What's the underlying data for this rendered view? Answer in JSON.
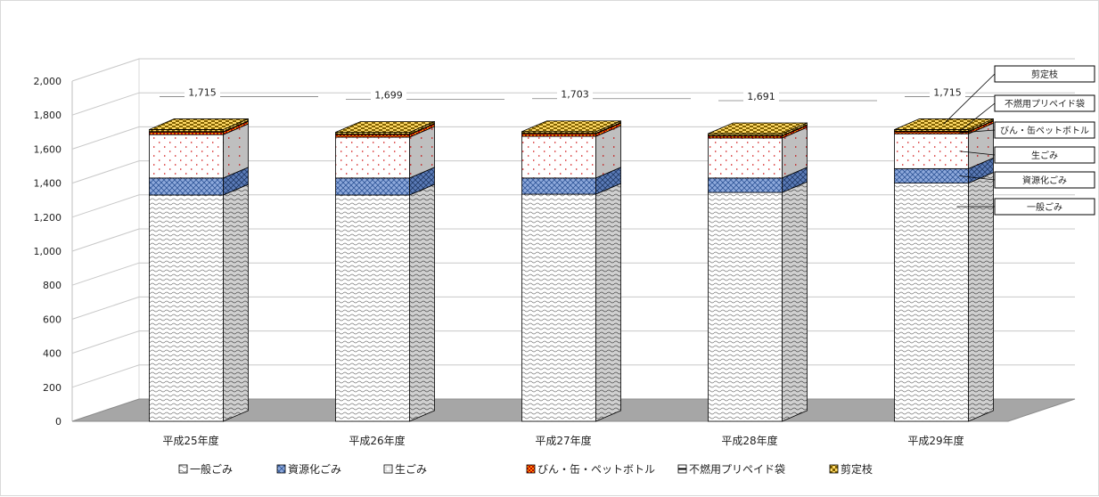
{
  "chart_data": {
    "type": "bar",
    "stacked": true,
    "three_d": true,
    "categories": [
      "平成25年度",
      "平成26年度",
      "平成27年度",
      "平成28年度",
      "平成29年度"
    ],
    "series": [
      {
        "name": "一般ごみ",
        "values": [
          1330,
          1330,
          1335,
          1345,
          1400
        ],
        "color": "#ffffff",
        "pattern": "wave"
      },
      {
        "name": "資源化ごみ",
        "values": [
          100,
          100,
          95,
          85,
          85
        ],
        "color": "#8ea9db",
        "pattern": "weave"
      },
      {
        "name": "生ごみ",
        "values": [
          255,
          240,
          245,
          235,
          205
        ],
        "color": "#ffffff",
        "pattern": "dots"
      },
      {
        "name": "びん・缶・ペットボトル",
        "values": [
          15,
          15,
          15,
          12,
          12
        ],
        "color": "#c00000",
        "pattern": "check"
      },
      {
        "name": "不燃用プリペイド袋",
        "values": [
          3,
          3,
          3,
          3,
          3
        ],
        "color": "#7f7f7f",
        "pattern": "solid"
      },
      {
        "name": "剪定枝",
        "values": [
          12,
          11,
          10,
          11,
          10
        ],
        "color": "#ffd966",
        "pattern": "check"
      }
    ],
    "totals": [
      "1,715",
      "1,699",
      "1,703",
      "1,691",
      "1,715"
    ],
    "y_ticks": [
      "0",
      "200",
      "400",
      "600",
      "800",
      "1,000",
      "1,200",
      "1,400",
      "1,600",
      "1,800",
      "2,000"
    ],
    "ylim": [
      0,
      2000
    ],
    "grid": true,
    "legend_position": "bottom",
    "title": "",
    "xlabel": "",
    "ylabel": "",
    "callouts": [
      "剪定枝",
      "不燃用プリペイド袋",
      "びん・缶ペットボトル",
      "生ごみ",
      "資源化ごみ",
      "一般ごみ"
    ]
  }
}
